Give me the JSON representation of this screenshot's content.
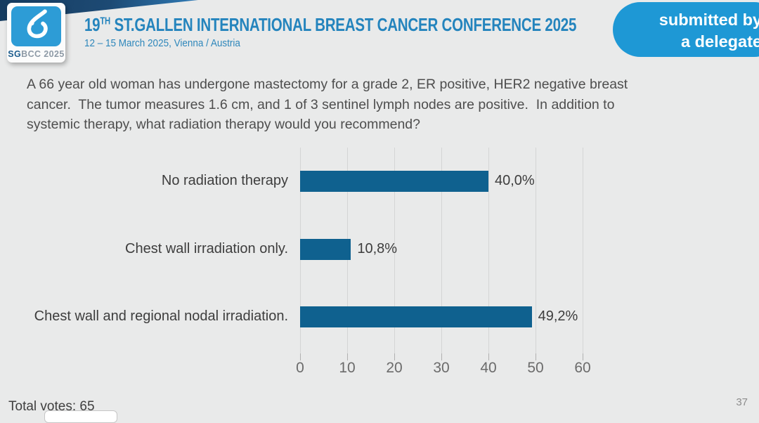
{
  "header": {
    "logo": {
      "sg": "SG",
      "bcc_year": "BCC 2025",
      "icon": "sgbcc-breast-icon",
      "square_color": "#2d9cd6"
    },
    "title_prefix": "19",
    "title_sup": "TH",
    "title_rest": " ST.GALLEN INTERNATIONAL BREAST CANCER CONFERENCE 2025",
    "subtitle": "12 – 15 March 2025, Vienna / Austria",
    "badge": {
      "line1": "submitted by",
      "line2": "a delegate",
      "color": "#1e98d5"
    }
  },
  "question": "A 66 year old woman has undergone mastectomy for a grade 2, ER positive, HER2 negative breast cancer.  The tumor measures 1.6 cm, and 1 of 3 sentinel lymph nodes are positive.  In addition to systemic therapy, what radiation therapy would you recommend?",
  "chart_data": {
    "type": "bar",
    "orientation": "horizontal",
    "title": "",
    "xlabel": "",
    "ylabel": "",
    "categories": [
      "No radiation therapy",
      "Chest wall irradiation only.",
      "Chest wall and regional nodal irradiation."
    ],
    "values": [
      40.0,
      10.8,
      49.2
    ],
    "value_labels": [
      "40,0%",
      "10,8%",
      "49,2%"
    ],
    "xlim": [
      0,
      60
    ],
    "x_ticks": [
      0,
      10,
      20,
      30,
      40,
      50,
      60
    ],
    "grid": true,
    "legend": false,
    "bar_color": "#0f618f"
  },
  "footer": {
    "total_votes": "Total votes: 65",
    "page_number": "37"
  }
}
